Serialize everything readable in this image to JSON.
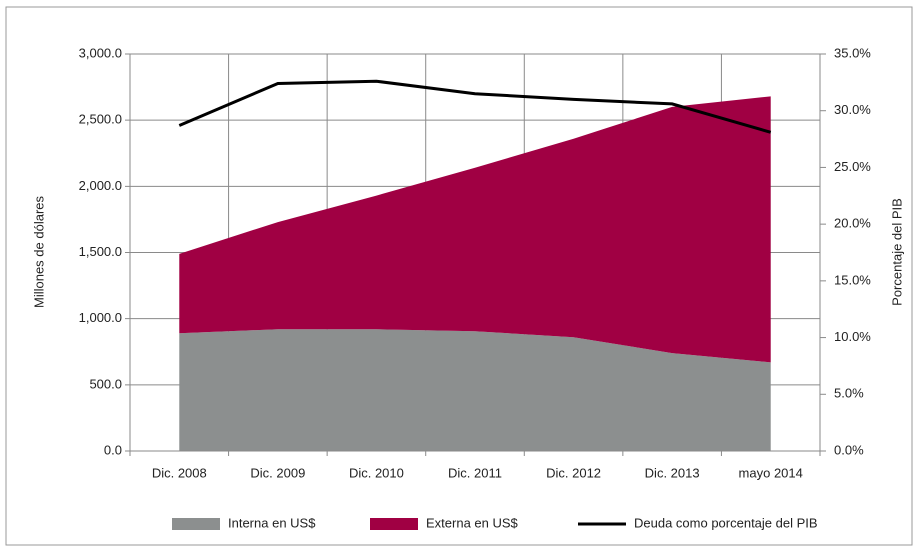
{
  "chart_data": {
    "type": "stacked_area_line",
    "categories": [
      "Dic. 2008",
      "Dic. 2009",
      "Dic. 2010",
      "Dic. 2011",
      "Dic. 2012",
      "Dic. 2013",
      "mayo 2014"
    ],
    "series": [
      {
        "name": "Interna en US$",
        "color": "#8c8f8f",
        "values": [
          890,
          920,
          920,
          905,
          860,
          740,
          670
        ]
      },
      {
        "name": "Externa en US$",
        "color": "#a00043",
        "values": [
          600,
          810,
          1010,
          1235,
          1500,
          1860,
          2010
        ]
      },
      {
        "name": "Deuda como porcentaje del PIB",
        "color": "#000000",
        "axis": "y2",
        "values": [
          28.7,
          32.4,
          32.6,
          31.5,
          31.0,
          30.6,
          28.1
        ]
      }
    ],
    "ylabel": "Millones de dólares",
    "y2label": "Porcentaje del PIB",
    "ylim": [
      0,
      3000
    ],
    "yticks": [
      {
        "value": 0,
        "label": "0.0"
      },
      {
        "value": 500,
        "label": "500.0"
      },
      {
        "value": 1000,
        "label": "1,000.0"
      },
      {
        "value": 1500,
        "label": "1,500.0"
      },
      {
        "value": 2000,
        "label": "2,000.0"
      },
      {
        "value": 2500,
        "label": "2,500.0"
      },
      {
        "value": 3000,
        "label": "3,000.0"
      }
    ],
    "y2lim": [
      0,
      35
    ],
    "y2ticks": [
      {
        "value": 0,
        "label": "0.0%"
      },
      {
        "value": 5,
        "label": "5.0%"
      },
      {
        "value": 10,
        "label": "10.0%"
      },
      {
        "value": 15,
        "label": "15.0%"
      },
      {
        "value": 20,
        "label": "20.0%"
      },
      {
        "value": 25,
        "label": "25.0%"
      },
      {
        "value": 30,
        "label": "30.0%"
      },
      {
        "value": 35,
        "label": "35.0%"
      }
    ],
    "grid": true
  }
}
